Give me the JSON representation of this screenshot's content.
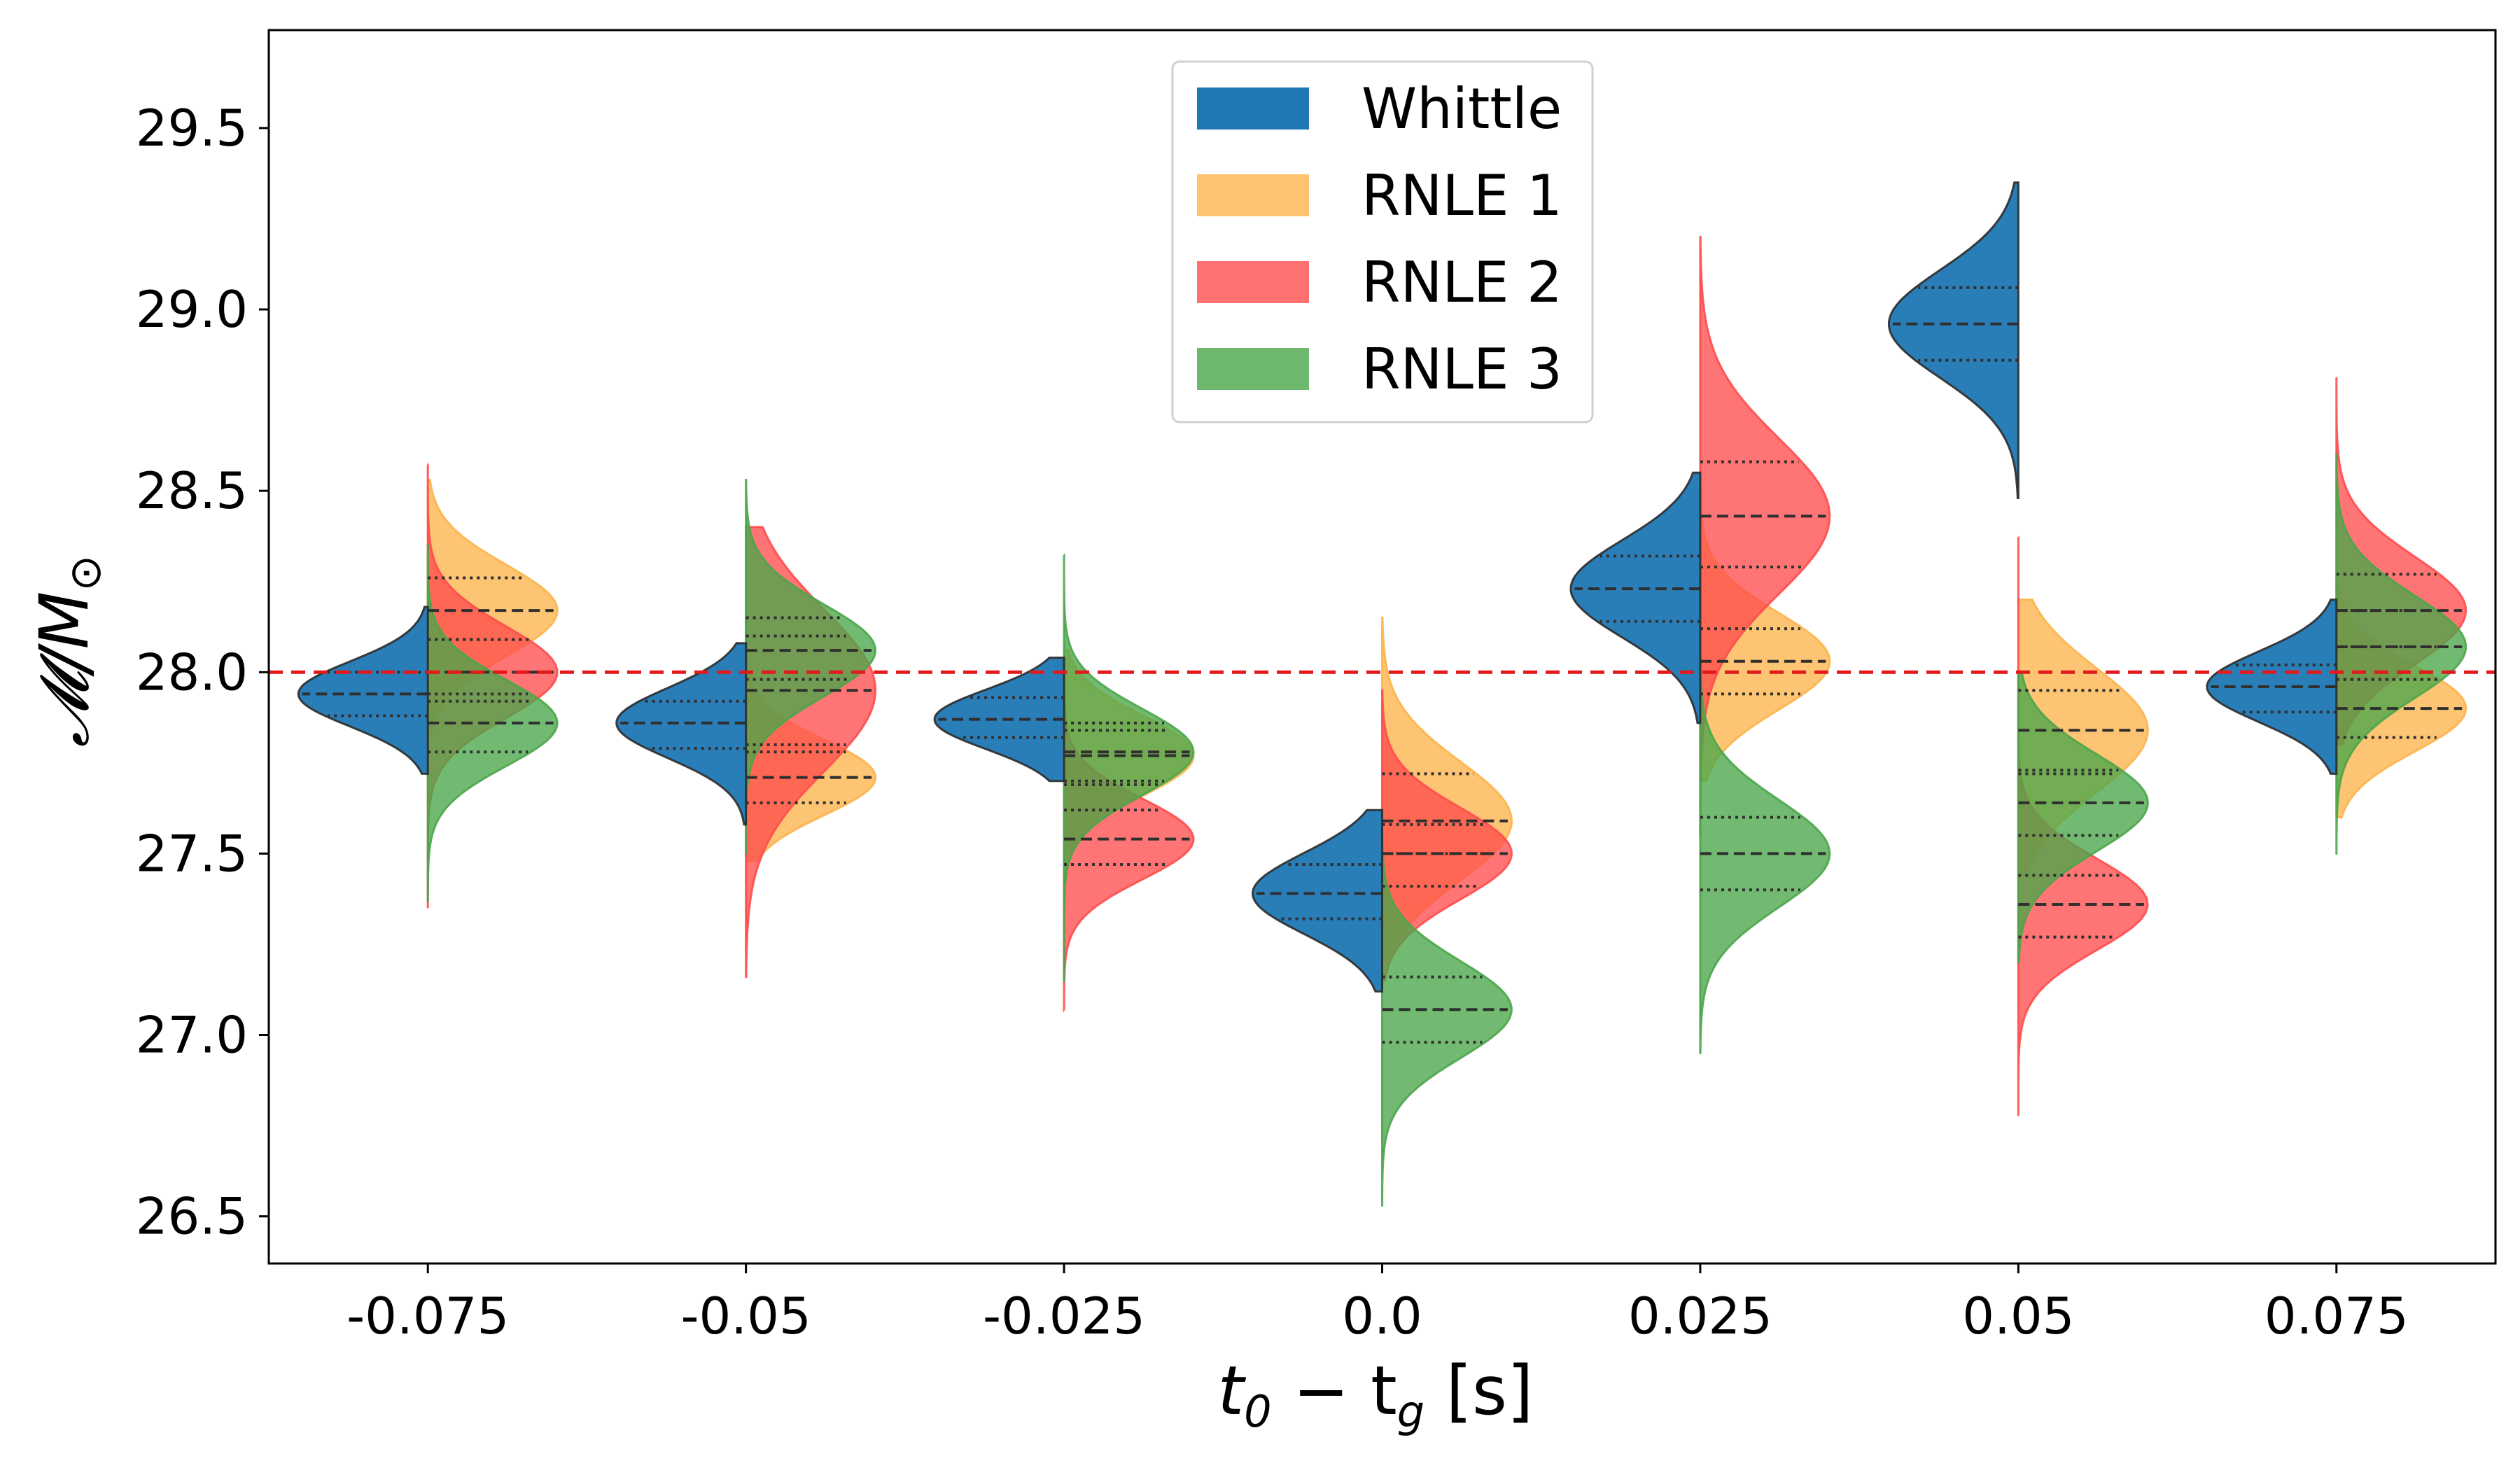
{
  "chart_data": {
    "type": "violin",
    "title": "",
    "xlabel": "t_0 − t_g [s]",
    "xlabel_parts": {
      "main": "t",
      "sub0": "0",
      "minus": " − t",
      "subg": "g",
      "unit": " [s]"
    },
    "ylabel": "𝓜/M⊙",
    "ylabel_parts": {
      "main": "𝓜/M",
      "sub": "⊙"
    },
    "categories": [
      "-0.075",
      "-0.05",
      "-0.025",
      "0.0",
      "0.025",
      "0.05",
      "0.075"
    ],
    "y_ticks": [
      "26.5",
      "27.0",
      "27.5",
      "28.0",
      "28.5",
      "29.0",
      "29.5"
    ],
    "ylim": [
      26.37,
      29.77
    ],
    "reference_line": {
      "y": 28.0,
      "color": "#e31a1c",
      "style": "dashed"
    },
    "legend": {
      "position": "top-center",
      "entries": [
        "Whittle",
        "RNLE 1",
        "RNLE 2",
        "RNLE 3"
      ]
    },
    "series": [
      {
        "name": "Whittle",
        "color": "#1f77b4",
        "side": "left",
        "distributions": [
          {
            "q25": 27.88,
            "median": 27.94,
            "q75": 28.0,
            "min": 27.72,
            "max": 28.18
          },
          {
            "q25": 27.79,
            "median": 27.86,
            "q75": 27.92,
            "min": 27.58,
            "max": 28.08
          },
          {
            "q25": 27.82,
            "median": 27.87,
            "q75": 27.93,
            "min": 27.7,
            "max": 28.04
          },
          {
            "q25": 27.32,
            "median": 27.39,
            "q75": 27.47,
            "min": 27.12,
            "max": 27.62
          },
          {
            "q25": 28.14,
            "median": 28.23,
            "q75": 28.32,
            "min": 27.86,
            "max": 28.55
          },
          {
            "q25": 28.86,
            "median": 28.96,
            "q75": 29.06,
            "min": 28.48,
            "max": 29.35
          },
          {
            "q25": 27.89,
            "median": 27.96,
            "q75": 28.02,
            "min": 27.72,
            "max": 28.2
          }
        ]
      },
      {
        "name": "RNLE 1",
        "color": "#fdb44b",
        "side": "right",
        "distributions": [
          {
            "q25": 28.09,
            "median": 28.17,
            "q75": 28.26,
            "min": 27.82,
            "max": 28.53
          },
          {
            "q25": 27.64,
            "median": 27.71,
            "q75": 27.78,
            "min": 27.48,
            "max": 28.15
          },
          {
            "q25": 27.69,
            "median": 27.77,
            "q75": 27.84,
            "min": 27.5,
            "max": 28.06
          },
          {
            "q25": 27.5,
            "median": 27.59,
            "q75": 27.72,
            "min": 27.2,
            "max": 28.15
          },
          {
            "q25": 27.94,
            "median": 28.03,
            "q75": 28.12,
            "min": 27.7,
            "max": 28.55
          },
          {
            "q25": 27.72,
            "median": 27.84,
            "q75": 27.95,
            "min": 27.45,
            "max": 28.2
          },
          {
            "q25": 27.82,
            "median": 27.9,
            "q75": 27.98,
            "min": 27.6,
            "max": 28.25
          }
        ]
      },
      {
        "name": "RNLE 2",
        "color": "#ff4d4d",
        "side": "right",
        "distributions": [
          {
            "q25": 27.92,
            "median": 28.0,
            "q75": 28.09,
            "min": 27.35,
            "max": 28.57
          },
          {
            "q25": 27.8,
            "median": 27.95,
            "q75": 28.1,
            "min": 27.16,
            "max": 28.4
          },
          {
            "q25": 27.47,
            "median": 27.54,
            "q75": 27.62,
            "min": 27.07,
            "max": 27.95
          },
          {
            "q25": 27.41,
            "median": 27.5,
            "q75": 27.58,
            "min": 27.15,
            "max": 27.95
          },
          {
            "q25": 28.29,
            "median": 28.43,
            "q75": 28.58,
            "min": 27.55,
            "max": 29.2
          },
          {
            "q25": 27.27,
            "median": 27.36,
            "q75": 27.44,
            "min": 26.78,
            "max": 28.37
          },
          {
            "q25": 28.07,
            "median": 28.17,
            "q75": 28.27,
            "min": 27.8,
            "max": 28.81
          }
        ]
      },
      {
        "name": "RNLE 3",
        "color": "#4aa64a",
        "side": "right",
        "distributions": [
          {
            "q25": 27.78,
            "median": 27.86,
            "q75": 27.94,
            "min": 27.37,
            "max": 28.35
          },
          {
            "q25": 27.98,
            "median": 28.06,
            "q75": 28.15,
            "min": 27.5,
            "max": 28.53
          },
          {
            "q25": 27.7,
            "median": 27.78,
            "q75": 27.86,
            "min": 27.15,
            "max": 28.32
          },
          {
            "q25": 26.98,
            "median": 27.07,
            "q75": 27.16,
            "min": 26.53,
            "max": 27.62
          },
          {
            "q25": 27.4,
            "median": 27.5,
            "q75": 27.6,
            "min": 26.95,
            "max": 28.05
          },
          {
            "q25": 27.55,
            "median": 27.64,
            "q75": 27.73,
            "min": 27.2,
            "max": 28.0
          },
          {
            "q25": 27.98,
            "median": 28.07,
            "q75": 28.17,
            "min": 27.5,
            "max": 28.6
          }
        ]
      }
    ]
  }
}
